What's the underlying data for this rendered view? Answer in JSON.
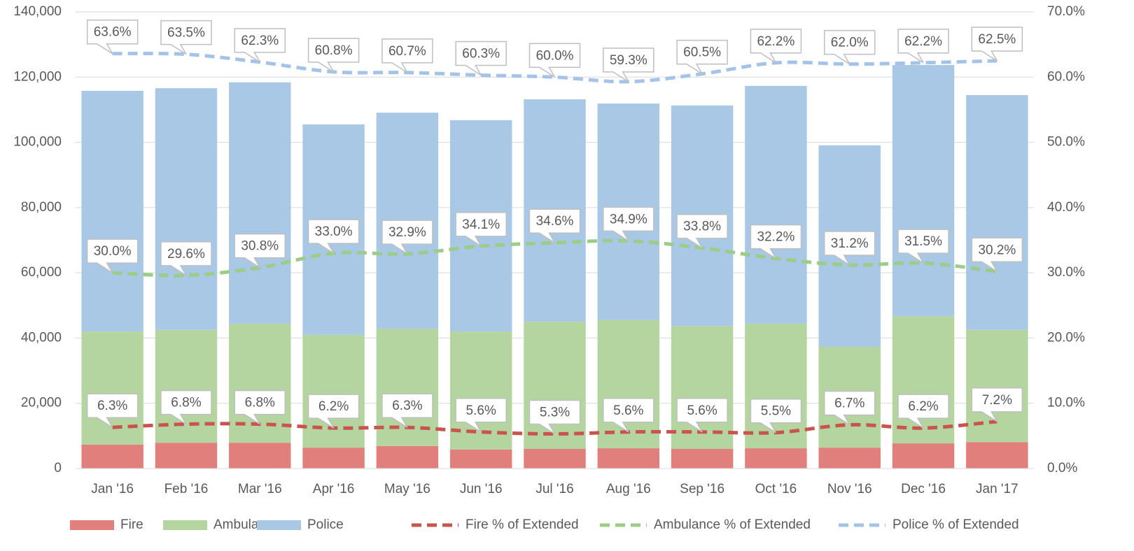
{
  "chart_data": {
    "type": "bar",
    "stacked": true,
    "grid": true,
    "categories": [
      "Jan '16",
      "Feb '16",
      "Mar '16",
      "Apr '16",
      "May '16",
      "Jun '16",
      "Jul '16",
      "Aug '16",
      "Sep '16",
      "Oct '16",
      "Nov '16",
      "Dec '16",
      "Jan '17"
    ],
    "ylim": [
      0,
      140000
    ],
    "yticks": [
      0,
      {
        "value": 20000,
        "label": "20,000"
      },
      {
        "value": 40000,
        "label": "40,000"
      },
      {
        "value": 60000,
        "label": "60,000"
      },
      {
        "value": 80000,
        "label": "80,000"
      },
      {
        "value": 100000,
        "label": "100,000"
      },
      {
        "value": 120000,
        "label": "120,000"
      },
      {
        "value": 140000,
        "label": "140,000"
      }
    ],
    "y2lim": [
      0,
      70
    ],
    "y2ticks": [
      {
        "value": 0,
        "label": "0.0%"
      },
      {
        "value": 10,
        "label": "10.0%"
      },
      {
        "value": 20,
        "label": "20.0%"
      },
      {
        "value": 30,
        "label": "30.0%"
      },
      {
        "value": 40,
        "label": "40.0%"
      },
      {
        "value": 50,
        "label": "50.0%"
      },
      {
        "value": 60,
        "label": "60.0%"
      },
      {
        "value": 70,
        "label": "70.0%"
      }
    ],
    "legend": "bottom",
    "series": [
      {
        "name": "Fire",
        "type": "bar",
        "color": "#e07f7c",
        "values": [
          7300,
          7900,
          7900,
          6400,
          6900,
          5800,
          6000,
          6200,
          6000,
          6200,
          6400,
          7700,
          8100
        ]
      },
      {
        "name": "Ambulance",
        "type": "bar",
        "color": "#b5d5a0",
        "values": [
          34700,
          34600,
          36500,
          34600,
          36000,
          36200,
          39000,
          39300,
          37700,
          38200,
          30900,
          39000,
          34400
        ]
      },
      {
        "name": "Police",
        "type": "bar",
        "color": "#a9c8e6",
        "values": [
          73800,
          74100,
          74000,
          64500,
          66200,
          64800,
          68200,
          66400,
          67600,
          72900,
          61800,
          77000,
          72000
        ]
      },
      {
        "name": "Fire % of Extended",
        "type": "line",
        "dashed": true,
        "axis": "y2",
        "color": "#c9544e",
        "values": [
          6.3,
          6.8,
          6.8,
          6.2,
          6.3,
          5.6,
          5.3,
          5.6,
          5.6,
          5.5,
          6.7,
          6.2,
          7.2
        ],
        "value_labels": [
          "6.3%",
          "6.8%",
          "6.8%",
          "6.2%",
          "6.3%",
          "5.6%",
          "5.3%",
          "5.6%",
          "5.6%",
          "5.5%",
          "6.7%",
          "6.2%",
          "7.2%"
        ]
      },
      {
        "name": "Ambulance % of Extended",
        "type": "line",
        "dashed": true,
        "axis": "y2",
        "color": "#9ccc85",
        "values": [
          30.0,
          29.6,
          30.8,
          33.0,
          32.9,
          34.1,
          34.6,
          34.9,
          33.8,
          32.2,
          31.2,
          31.5,
          30.2
        ],
        "value_labels": [
          "30.0%",
          "29.6%",
          "30.8%",
          "33.0%",
          "32.9%",
          "34.1%",
          "34.6%",
          "34.9%",
          "33.8%",
          "32.2%",
          "31.2%",
          "31.5%",
          "30.2%"
        ]
      },
      {
        "name": "Police % of Extended",
        "type": "line",
        "dashed": true,
        "axis": "y2",
        "color": "#a3c4e8",
        "values": [
          63.6,
          63.5,
          62.3,
          60.8,
          60.7,
          60.3,
          60.0,
          59.3,
          60.5,
          62.2,
          62.0,
          62.2,
          62.5
        ],
        "value_labels": [
          "63.6%",
          "63.5%",
          "62.3%",
          "60.8%",
          "60.7%",
          "60.3%",
          "60.0%",
          "59.3%",
          "60.5%",
          "62.2%",
          "62.0%",
          "62.2%",
          "62.5%"
        ]
      }
    ]
  }
}
